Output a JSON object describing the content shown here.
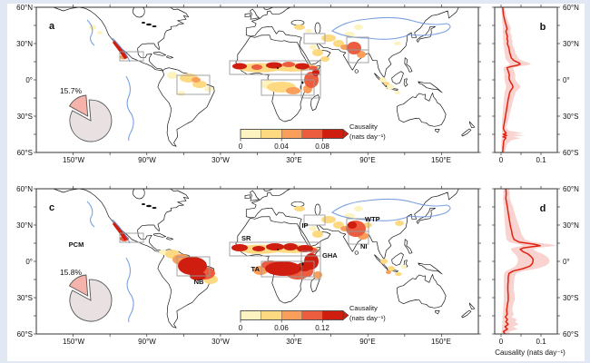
{
  "colors": {
    "background_frame": "#e2e7f4",
    "figure_background": "#ffffff",
    "coastline": "#1a1a1a",
    "heat_palette": [
      "#fdf3c0",
      "#fdd981",
      "#f99f5b",
      "#ec5c3e",
      "#cf1d10"
    ],
    "profile_line": "#e02310",
    "profile_band": "#f6c8c4",
    "pie_slice": "#f5b3ab",
    "pie_rest": "#e8e0e1",
    "elevation_contour": "#6d97de",
    "region_box": "#999999",
    "axis": "#333333"
  },
  "map_axis": {
    "lon_labels": [
      "150°W",
      "90°W",
      "30°W",
      "30°E",
      "90°E",
      "150°E"
    ],
    "lat_labels": [
      "60°N",
      "30°N",
      "0°",
      "30°S",
      "60°S"
    ]
  },
  "panels": {
    "a": {
      "letter": "a",
      "pie_label": "15.7%",
      "colorbar_ticks": [
        "0",
        "0.04",
        "0.08"
      ],
      "colorbar_title_1": "Causality",
      "colorbar_title_2": "(nats day⁻¹)"
    },
    "b": {
      "letter": "b",
      "x_tick_labels": [
        "0",
        "0.1"
      ]
    },
    "c": {
      "letter": "c",
      "pie_label": "15.8%",
      "colorbar_ticks": [
        "0",
        "0.06",
        "0.12"
      ],
      "colorbar_title_1": "Causality",
      "colorbar_title_2": "(nats day⁻¹)",
      "regions": [
        {
          "label": "PCM"
        },
        {
          "label": "NB"
        },
        {
          "label": "SR"
        },
        {
          "label": "TA"
        },
        {
          "label": "GHA"
        },
        {
          "label": "IP"
        },
        {
          "label": "WTP"
        },
        {
          "label": "NI"
        }
      ]
    },
    "d": {
      "letter": "d",
      "x_tick_labels": [
        "0",
        "0.1"
      ],
      "x_axis_label": "Causality (nats day⁻¹)"
    }
  },
  "chart_data": [
    {
      "type": "heatmap",
      "panel": "a",
      "content": "global map of causality strength",
      "lon_range": [
        -180,
        180
      ],
      "lat_range": [
        -60,
        60
      ],
      "colorbar": {
        "label": "Causality (nats day⁻¹)",
        "range": [
          0,
          0.1
        ],
        "ticks": [
          0,
          0.04,
          0.08
        ]
      },
      "pie": {
        "highlight_pct": 15.7,
        "rest_pct": 84.3
      },
      "region_boxes": [
        "PCM",
        "NB",
        "SR",
        "TA",
        "GHA",
        "IP",
        "WTP",
        "NI"
      ],
      "hotspots": [
        "western Mexico",
        "Sahel band",
        "Greater Horn of Africa",
        "tropical Africa",
        "Arabian Peninsula",
        "Iranian Plateau",
        "northwestern India",
        "northern South America"
      ]
    },
    {
      "type": "line",
      "panel": "b",
      "orientation": "profile-by-latitude",
      "xlim": [
        0,
        0.14
      ],
      "x_ticks": [
        0,
        0.1
      ],
      "ylim": [
        -60,
        60
      ],
      "lats": [
        60,
        57,
        54,
        51,
        48,
        45,
        42,
        40,
        38,
        36,
        34,
        32,
        30,
        28,
        26,
        24,
        22,
        20,
        18,
        16,
        14,
        13,
        12,
        11,
        10,
        8,
        6,
        4,
        2,
        0,
        -2,
        -4,
        -6,
        -8,
        -10,
        -13,
        -16,
        -20,
        -24,
        -28,
        -32,
        -36,
        -40,
        -42,
        -44,
        -45,
        -46,
        -47,
        -48,
        -50,
        -53,
        -56,
        -60
      ],
      "mean": [
        0.004,
        0.005,
        0.006,
        0.008,
        0.01,
        0.013,
        0.015,
        0.012,
        0.014,
        0.016,
        0.015,
        0.017,
        0.016,
        0.018,
        0.02,
        0.021,
        0.022,
        0.024,
        0.026,
        0.032,
        0.045,
        0.048,
        0.04,
        0.025,
        0.015,
        0.017,
        0.019,
        0.021,
        0.02,
        0.021,
        0.024,
        0.028,
        0.03,
        0.026,
        0.022,
        0.02,
        0.018,
        0.016,
        0.014,
        0.012,
        0.01,
        0.008,
        0.006,
        0.008,
        0.013,
        0.006,
        0.014,
        0.005,
        0.012,
        0.007,
        0.006,
        0.005,
        0.004
      ],
      "lo": [
        0.001,
        0.001,
        0.002,
        0.002,
        0.003,
        0.004,
        0.005,
        0.004,
        0.005,
        0.005,
        0.005,
        0.006,
        0.006,
        0.007,
        0.008,
        0.008,
        0.009,
        0.01,
        0.011,
        0.014,
        0.02,
        0.022,
        0.018,
        0.01,
        0.006,
        0.007,
        0.008,
        0.009,
        0.008,
        0.009,
        0.01,
        0.012,
        0.013,
        0.011,
        0.009,
        0.008,
        0.007,
        0.006,
        0.005,
        0.004,
        0.003,
        0.002,
        0.002,
        0.002,
        0.003,
        0.001,
        0.003,
        0.001,
        0.002,
        0.001,
        0.001,
        0.001,
        0.001
      ],
      "hi": [
        0.008,
        0.01,
        0.012,
        0.015,
        0.018,
        0.022,
        0.025,
        0.022,
        0.024,
        0.027,
        0.026,
        0.029,
        0.028,
        0.03,
        0.033,
        0.035,
        0.036,
        0.04,
        0.043,
        0.052,
        0.07,
        0.075,
        0.065,
        0.045,
        0.03,
        0.032,
        0.034,
        0.036,
        0.035,
        0.036,
        0.04,
        0.046,
        0.049,
        0.043,
        0.037,
        0.034,
        0.031,
        0.028,
        0.025,
        0.022,
        0.019,
        0.016,
        0.013,
        0.02,
        0.055,
        0.03,
        0.06,
        0.028,
        0.05,
        0.025,
        0.015,
        0.012,
        0.009
      ]
    },
    {
      "type": "heatmap",
      "panel": "c",
      "content": "global map of causality strength with labeled regions",
      "lon_range": [
        -180,
        180
      ],
      "lat_range": [
        -60,
        60
      ],
      "colorbar": {
        "label": "Causality (nats day⁻¹)",
        "range": [
          0,
          0.15
        ],
        "ticks": [
          0,
          0.06,
          0.12
        ]
      },
      "pie": {
        "highlight_pct": 15.8,
        "rest_pct": 84.2
      },
      "region_boxes": [
        "PCM",
        "NB",
        "SR",
        "TA",
        "GHA",
        "IP",
        "WTP",
        "NI"
      ],
      "hotspots": [
        "western Mexico (PCM)",
        "northern Brazil / Amazon (NB)",
        "Sahel (SR)",
        "tropical Africa (TA)",
        "Greater Horn of Africa (GHA)",
        "Iranian Plateau (IP)",
        "western Tibetan Plateau (WTP)",
        "northern India (NI)"
      ]
    },
    {
      "type": "line",
      "panel": "d",
      "orientation": "profile-by-latitude",
      "x_label": "Causality (nats day⁻¹)",
      "xlim": [
        0,
        0.14
      ],
      "x_ticks": [
        0,
        0.1
      ],
      "ylim": [
        -60,
        60
      ],
      "lats": [
        60,
        56,
        52,
        48,
        45,
        42,
        40,
        38,
        36,
        34,
        32,
        30,
        28,
        26,
        24,
        22,
        20,
        18,
        16,
        14,
        13,
        12,
        11,
        10,
        8,
        6,
        4,
        2,
        0,
        -2,
        -4,
        -6,
        -8,
        -10,
        -13,
        -16,
        -20,
        -24,
        -28,
        -32,
        -36,
        -40,
        -44,
        -46,
        -48,
        -50,
        -52,
        -54,
        -56,
        -58,
        -60
      ],
      "mean": [
        0.012,
        0.013,
        0.012,
        0.014,
        0.016,
        0.017,
        0.018,
        0.019,
        0.02,
        0.021,
        0.022,
        0.023,
        0.024,
        0.026,
        0.027,
        0.028,
        0.03,
        0.033,
        0.045,
        0.085,
        0.098,
        0.075,
        0.055,
        0.048,
        0.055,
        0.068,
        0.075,
        0.08,
        0.08,
        0.078,
        0.072,
        0.055,
        0.03,
        0.02,
        0.018,
        0.018,
        0.017,
        0.017,
        0.018,
        0.018,
        0.016,
        0.014,
        0.015,
        0.011,
        0.016,
        0.012,
        0.018,
        0.01,
        0.016,
        0.006,
        0.01
      ],
      "lo": [
        0.006,
        0.006,
        0.005,
        0.006,
        0.007,
        0.007,
        0.008,
        0.008,
        0.008,
        0.009,
        0.009,
        0.01,
        0.01,
        0.011,
        0.011,
        0.012,
        0.013,
        0.014,
        0.02,
        0.045,
        0.055,
        0.04,
        0.028,
        0.024,
        0.028,
        0.035,
        0.04,
        0.042,
        0.042,
        0.04,
        0.036,
        0.025,
        0.012,
        0.008,
        0.007,
        0.007,
        0.007,
        0.007,
        0.007,
        0.007,
        0.006,
        0.005,
        0.005,
        0.003,
        0.004,
        0.003,
        0.004,
        0.002,
        0.003,
        0.001,
        0.002
      ],
      "hi": [
        0.02,
        0.022,
        0.022,
        0.026,
        0.03,
        0.032,
        0.034,
        0.036,
        0.038,
        0.04,
        0.042,
        0.044,
        0.046,
        0.048,
        0.05,
        0.052,
        0.056,
        0.06,
        0.08,
        0.125,
        0.14,
        0.115,
        0.09,
        0.08,
        0.09,
        0.105,
        0.115,
        0.12,
        0.122,
        0.118,
        0.11,
        0.09,
        0.055,
        0.038,
        0.034,
        0.033,
        0.032,
        0.032,
        0.034,
        0.034,
        0.03,
        0.028,
        0.032,
        0.026,
        0.04,
        0.035,
        0.045,
        0.03,
        0.042,
        0.02,
        0.022
      ]
    }
  ]
}
